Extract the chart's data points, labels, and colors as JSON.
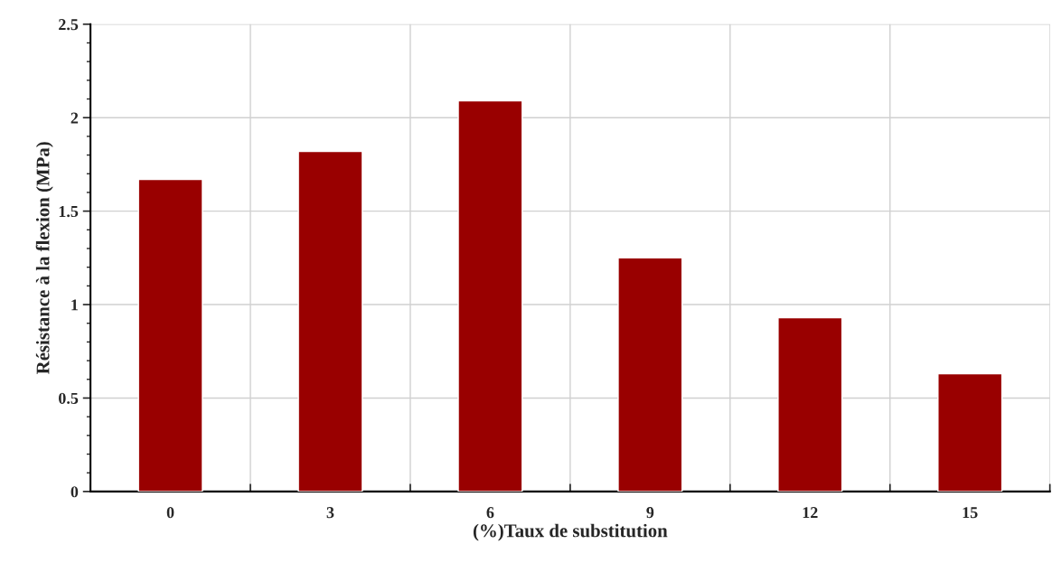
{
  "chart_data": {
    "type": "bar",
    "xlabel": "(%)Taux de substitution",
    "ylabel": "Résistance à la flexion (MPa)",
    "categories": [
      "0",
      "3",
      "6",
      "9",
      "12",
      "15"
    ],
    "values": [
      1.67,
      1.82,
      2.09,
      1.25,
      0.93,
      0.63
    ],
    "color": "#990000",
    "ylim": [
      0,
      2.5
    ],
    "yticks": [
      0,
      0.5,
      1,
      1.5,
      2,
      2.5
    ],
    "grid": true
  }
}
